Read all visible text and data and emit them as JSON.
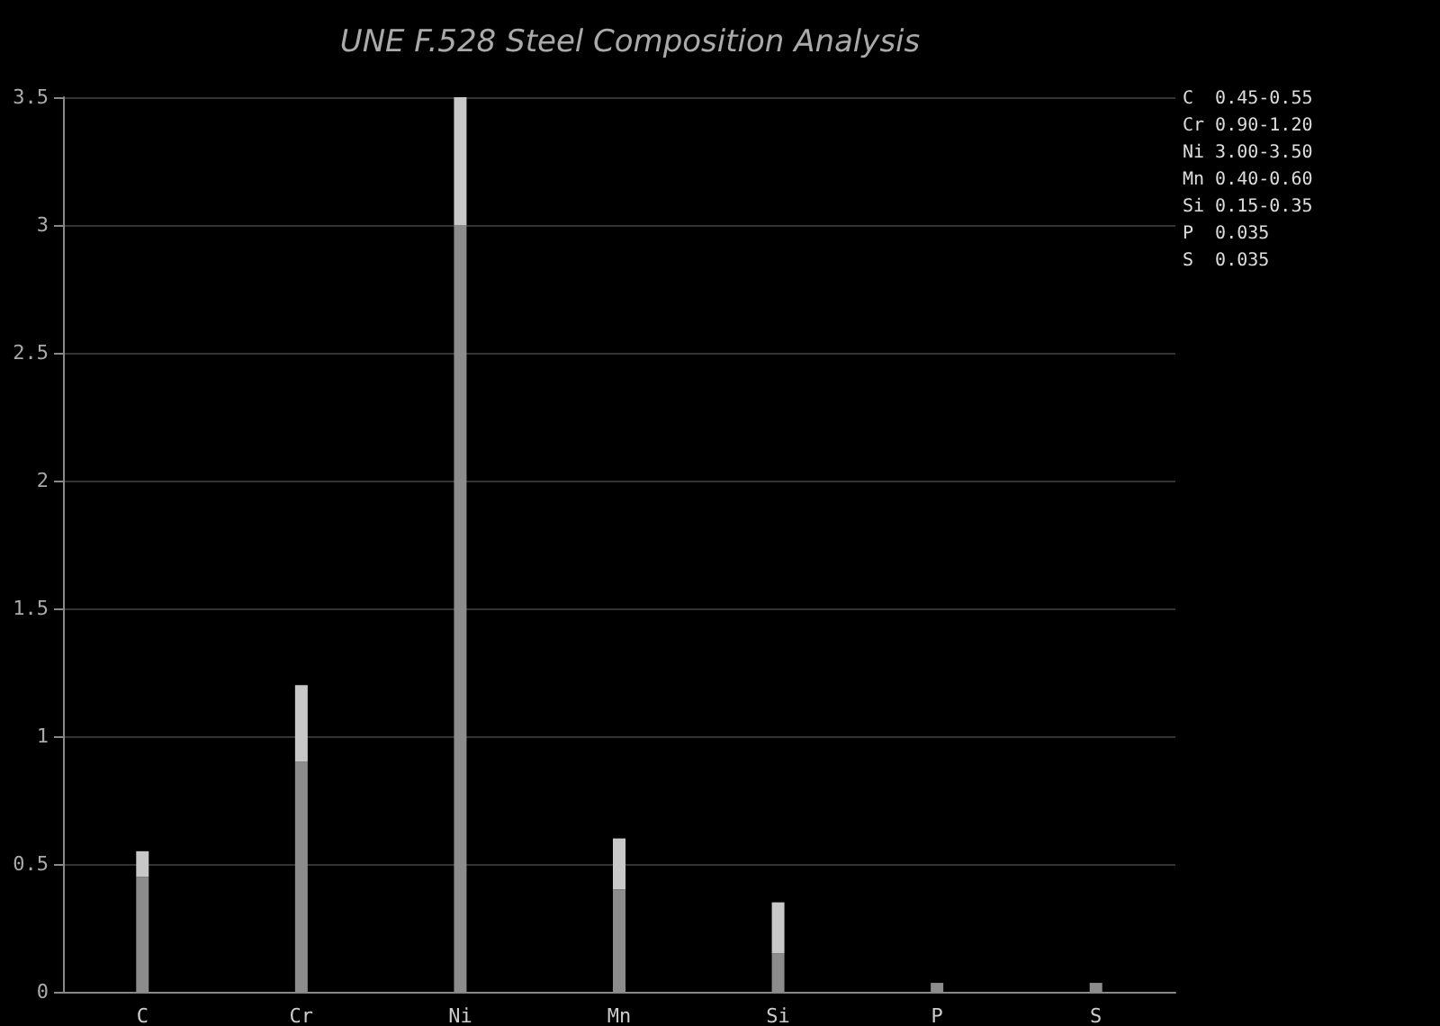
{
  "chart_data": {
    "type": "bar",
    "title": "UNE F.528 Steel Composition Analysis",
    "categories": [
      "C",
      "Cr",
      "Ni",
      "Mn",
      "Si",
      "P",
      "S"
    ],
    "stacked": true,
    "series": [
      {
        "color": "#8c8c8c",
        "values": [
          0.45,
          0.9,
          3.0,
          0.4,
          0.15,
          0.035,
          0.035
        ]
      },
      {
        "color": "#c8c8c8",
        "values": [
          0.1,
          0.3,
          0.5,
          0.2,
          0.2,
          null,
          null
        ]
      }
    ],
    "ylim": [
      0,
      3.5
    ],
    "yticks": [
      0,
      0.5,
      1,
      1.5,
      2,
      2.5,
      3,
      3.5
    ],
    "grid": "y",
    "annotations": [
      "C  0.45-0.55",
      "Cr 0.90-1.20",
      "Ni 3.00-3.50",
      "Mn 0.40-0.60",
      "Si 0.15-0.35",
      "P  0.035",
      "S  0.035"
    ]
  }
}
